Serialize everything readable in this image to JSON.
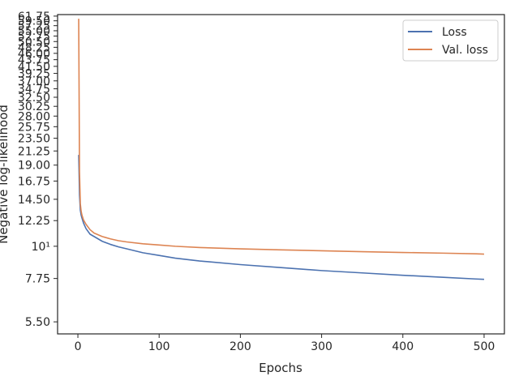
{
  "chart_data": {
    "type": "line",
    "title": "",
    "xlabel": "Epochs",
    "ylabel": "Negative log-likelihood",
    "xlim": [
      -25,
      525
    ],
    "xticks": [
      0,
      100,
      200,
      300,
      400,
      500
    ],
    "x_tick_labels": [
      "0",
      "100",
      "200",
      "300",
      "400",
      "500"
    ],
    "yscale": "log",
    "ylim": [
      5.0,
      62.5
    ],
    "yticks": [
      5.5,
      7.75,
      10,
      12.25,
      14.5,
      16.75,
      19.0,
      21.25,
      23.5,
      25.75,
      28.0,
      30.25,
      32.5,
      34.75,
      37.0,
      39.25,
      41.5,
      43.75,
      46.0,
      48.25,
      50.5,
      52.75,
      55.0,
      57.25,
      59.5,
      61.75
    ],
    "y_tick_labels": [
      "5.50",
      "7.75",
      "10¹",
      "12.25",
      "14.50",
      "16.75",
      "19.00",
      "21.25",
      "23.50",
      "25.75",
      "28.00",
      "30.25",
      "32.50",
      "34.75",
      "37.00",
      "39.25",
      "41.50",
      "43.75",
      "46.00",
      "48.25",
      "50.50",
      "52.75",
      "55.00",
      "57.25",
      "59.50",
      "61.75"
    ],
    "grid": false,
    "legend_position": "top-right",
    "series": [
      {
        "name": "Loss",
        "color": "#4c72b0",
        "x": [
          1,
          2,
          3,
          4,
          5,
          7,
          10,
          15,
          20,
          30,
          40,
          50,
          60,
          80,
          100,
          120,
          150,
          200,
          250,
          300,
          350,
          400,
          450,
          490,
          500
        ],
        "y": [
          20.6,
          15.0,
          13.3,
          12.8,
          12.5,
          12.0,
          11.5,
          11.0,
          10.8,
          10.4,
          10.15,
          9.95,
          9.8,
          9.5,
          9.3,
          9.1,
          8.9,
          8.65,
          8.45,
          8.25,
          8.1,
          7.95,
          7.82,
          7.72,
          7.7
        ]
      },
      {
        "name": "Val. loss",
        "color": "#dd8452",
        "x": [
          1,
          2,
          3,
          4,
          5,
          7,
          10,
          15,
          20,
          30,
          40,
          50,
          60,
          80,
          100,
          120,
          150,
          200,
          250,
          300,
          350,
          400,
          450,
          490,
          500
        ],
        "y": [
          60.5,
          18.0,
          14.0,
          13.2,
          12.8,
          12.3,
          11.9,
          11.4,
          11.1,
          10.8,
          10.6,
          10.45,
          10.35,
          10.2,
          10.1,
          10.0,
          9.9,
          9.8,
          9.72,
          9.65,
          9.58,
          9.52,
          9.47,
          9.42,
          9.4
        ]
      }
    ]
  }
}
